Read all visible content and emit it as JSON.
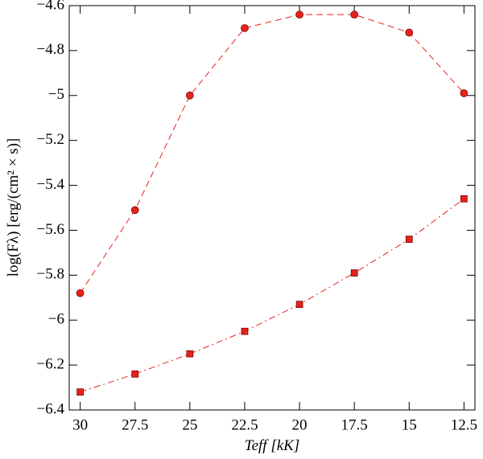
{
  "chart_data": {
    "type": "line",
    "xlabel": "Teff [kK]",
    "ylabel": "log(Fλ) [erg/(cm² × s)]",
    "x": [
      30,
      27.5,
      25,
      22.5,
      20,
      17.5,
      15,
      12.5
    ],
    "series": [
      {
        "color": "#e8211b",
        "marker": "circle",
        "dash": "8,5",
        "values": [
          -5.88,
          -5.51,
          -5.0,
          -4.7,
          -4.64,
          -4.64,
          -4.72,
          -4.99
        ]
      },
      {
        "color": "#e8211b",
        "marker": "square",
        "dash": "8,4,2,4",
        "values": [
          -6.32,
          -6.24,
          -6.15,
          -6.05,
          -5.93,
          -5.79,
          -5.64,
          -5.46
        ]
      }
    ],
    "xlim": [
      30.5,
      12
    ],
    "xticks": [
      30,
      27.5,
      25,
      22.5,
      20,
      17.5,
      15,
      12.5
    ],
    "ylim": [
      -6.4,
      -4.6
    ],
    "yticks": [
      {
        "value": -6.4,
        "label": "−6.4"
      },
      {
        "value": -6.2,
        "label": "−6.2"
      },
      {
        "value": -6,
        "label": "−6"
      },
      {
        "value": -5.8,
        "label": "−5.8"
      },
      {
        "value": -5.6,
        "label": "−5.6"
      },
      {
        "value": -5.4,
        "label": "−5.4"
      },
      {
        "value": -5.2,
        "label": "−5.2"
      },
      {
        "value": -5,
        "label": "−5"
      },
      {
        "value": -4.8,
        "label": "−4.8"
      },
      {
        "value": -4.6,
        "label": "−4.6"
      }
    ]
  }
}
